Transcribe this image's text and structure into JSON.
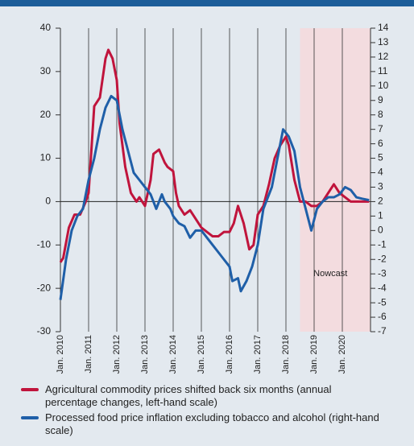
{
  "chart_data": {
    "type": "line",
    "x": [],
    "xlim": [
      2010,
      2021
    ],
    "xticks": [
      {
        "value": 2010,
        "label": "Jan. 2010"
      },
      {
        "value": 2011,
        "label": "Jan. 2011"
      },
      {
        "value": 2012,
        "label": "Jan. 2012"
      },
      {
        "value": 2013,
        "label": "Jan. 2013"
      },
      {
        "value": 2014,
        "label": "Jan. 2014"
      },
      {
        "value": 2015,
        "label": "Jan. 2015"
      },
      {
        "value": 2016,
        "label": "Jan. 2016"
      },
      {
        "value": 2017,
        "label": "Jan. 2017"
      },
      {
        "value": 2018,
        "label": "Jan. 2018"
      },
      {
        "value": 2019,
        "label": "Jan. 2019"
      },
      {
        "value": 2020,
        "label": "Jan. 2020"
      }
    ],
    "ylim": [
      -30,
      40
    ],
    "yticks": [
      -30,
      -20,
      -10,
      0,
      10,
      20,
      30,
      40
    ],
    "y2lim": [
      -7,
      14
    ],
    "y2ticks": [
      -7,
      -6,
      -5,
      -4,
      -3,
      -2,
      -1,
      0,
      1,
      2,
      3,
      4,
      5,
      6,
      7,
      8,
      9,
      10,
      11,
      12,
      13,
      14
    ],
    "grid": true,
    "shade": {
      "from": 2018.5,
      "to": 2021,
      "color": "#f3dcdf",
      "label": "Nowcast"
    },
    "series": [
      {
        "name": "Agricultural commodity prices shifted back six months (annual percentage changes, left-hand scale)",
        "color": "#c0143c",
        "axis": "y",
        "x": [
          2010.0,
          2010.1,
          2010.3,
          2010.5,
          2010.7,
          2010.9,
          2011.0,
          2011.2,
          2011.4,
          2011.6,
          2011.7,
          2011.85,
          2012.0,
          2012.1,
          2012.3,
          2012.5,
          2012.7,
          2012.8,
          2013.0,
          2013.2,
          2013.3,
          2013.5,
          2013.7,
          2013.8,
          2014.0,
          2014.1,
          2014.2,
          2014.4,
          2014.6,
          2014.8,
          2015.0,
          2015.2,
          2015.4,
          2015.6,
          2015.8,
          2016.0,
          2016.15,
          2016.3,
          2016.5,
          2016.7,
          2016.85,
          2017.0,
          2017.2,
          2017.4,
          2017.6,
          2017.8,
          2018.0,
          2018.1,
          2018.3,
          2018.5,
          2018.7,
          2018.9,
          2019.1,
          2019.3,
          2019.5,
          2019.7,
          2019.9,
          2020.1,
          2020.3,
          2020.5,
          2020.95
        ],
        "values": [
          -14,
          -13,
          -6,
          -3,
          -3,
          0,
          2,
          22,
          24,
          33,
          35,
          33,
          28,
          18,
          8,
          2,
          0,
          1,
          -1,
          5,
          11,
          12,
          9,
          8,
          7,
          2,
          -1,
          -3,
          -2,
          -4,
          -6,
          -7,
          -8,
          -8,
          -7,
          -7,
          -5,
          -1,
          -5,
          -11,
          -10,
          -3,
          -1,
          4,
          10,
          13,
          15,
          13,
          5,
          0,
          0,
          -1,
          -1,
          0,
          2,
          4,
          2,
          1,
          0,
          0,
          0
        ]
      },
      {
        "name": "Processed food price inflation excluding tobacco and alcohol (right-hand scale)",
        "color": "#1f5fa8",
        "axis": "y2",
        "x": [
          2010.0,
          2010.2,
          2010.4,
          2010.6,
          2010.8,
          2011.0,
          2011.2,
          2011.4,
          2011.6,
          2011.8,
          2012.0,
          2012.2,
          2012.4,
          2012.6,
          2012.8,
          2013.0,
          2013.2,
          2013.4,
          2013.6,
          2013.7,
          2013.9,
          2014.0,
          2014.2,
          2014.4,
          2014.6,
          2014.8,
          2015.0,
          2015.2,
          2015.4,
          2015.6,
          2015.8,
          2016.0,
          2016.1,
          2016.3,
          2016.4,
          2016.6,
          2016.8,
          2017.0,
          2017.2,
          2017.5,
          2017.7,
          2017.9,
          2018.1,
          2018.3,
          2018.5,
          2018.7,
          2018.9,
          2019.1,
          2019.3,
          2019.5,
          2019.7,
          2019.9,
          2020.1,
          2020.3,
          2020.5,
          2020.7,
          2020.95
        ],
        "values": [
          -4.8,
          -2,
          0,
          1,
          1.5,
          3.5,
          5,
          7,
          8.5,
          9.3,
          9,
          7,
          5.5,
          4,
          3.5,
          3,
          2.5,
          1.5,
          2.5,
          2,
          1.5,
          1,
          0.5,
          0.3,
          -0.5,
          0,
          0,
          -0.5,
          -1,
          -1.5,
          -2,
          -2.5,
          -3.5,
          -3.3,
          -4.2,
          -3.5,
          -2.5,
          -1,
          1.5,
          3,
          5,
          7,
          6.5,
          5.5,
          3,
          1.5,
          0,
          1.5,
          2,
          2.3,
          2.3,
          2.5,
          3,
          2.8,
          2.3,
          2.2,
          2.1
        ]
      }
    ]
  }
}
